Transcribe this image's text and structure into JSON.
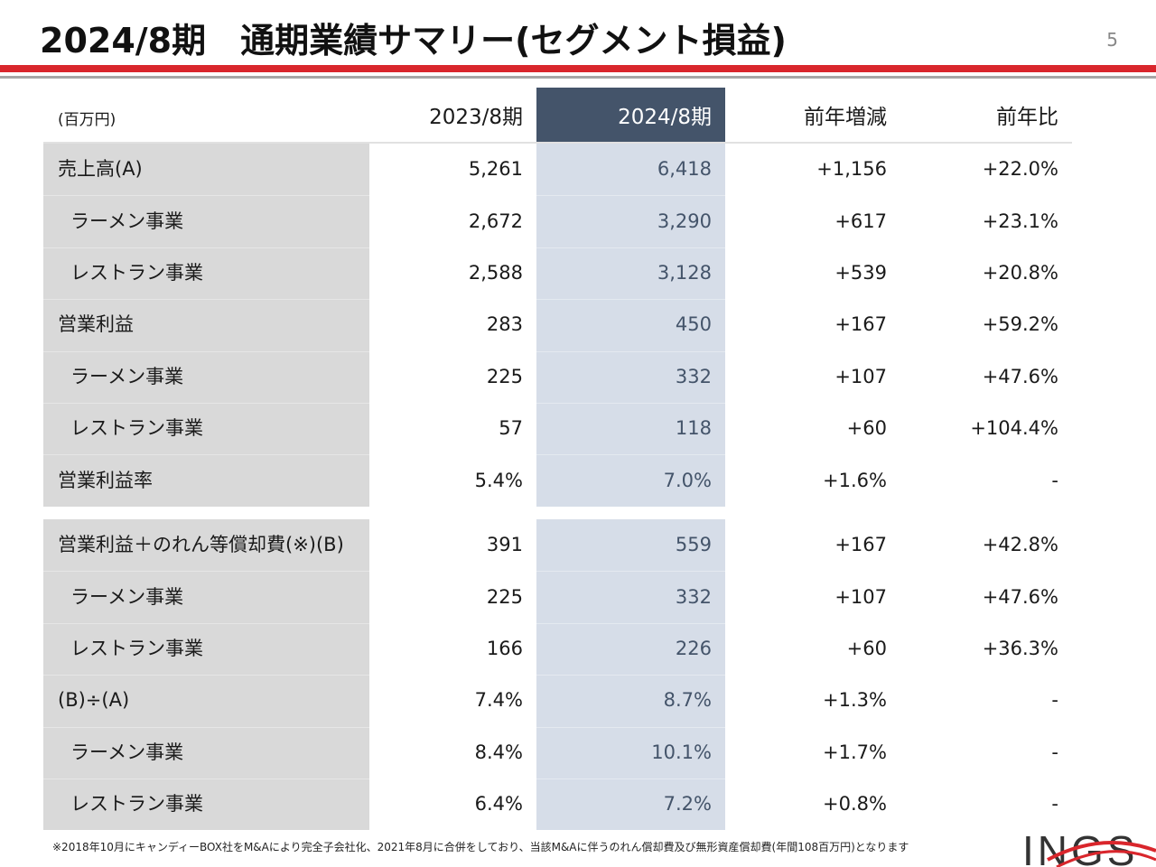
{
  "header": {
    "title": "2024/8期　通期業績サマリー(セグメント損益)",
    "page_number": "5"
  },
  "table": {
    "unit": "(百万円)",
    "columns": [
      "2023/8期",
      "2024/8期",
      "前年増減",
      "前年比"
    ],
    "group1": [
      {
        "label": "売上高(A)",
        "prev": "5,261",
        "cur": "6,418",
        "diff": "+1,156",
        "ratio": "+22.0%"
      },
      {
        "label": "ラーメン事業",
        "prev": "2,672",
        "cur": "3,290",
        "diff": "+617",
        "ratio": "+23.1%"
      },
      {
        "label": "レストラン事業",
        "prev": "2,588",
        "cur": "3,128",
        "diff": "+539",
        "ratio": "+20.8%"
      },
      {
        "label": "営業利益",
        "prev": "283",
        "cur": "450",
        "diff": "+167",
        "ratio": "+59.2%"
      },
      {
        "label": "ラーメン事業",
        "prev": "225",
        "cur": "332",
        "diff": "+107",
        "ratio": "+47.6%"
      },
      {
        "label": "レストラン事業",
        "prev": "57",
        "cur": "118",
        "diff": "+60",
        "ratio": "+104.4%"
      },
      {
        "label": "営業利益率",
        "prev": "5.4%",
        "cur": "7.0%",
        "diff": "+1.6%",
        "ratio": "-"
      }
    ],
    "group2": [
      {
        "label": "営業利益＋のれん等償却費(※)(B)",
        "prev": "391",
        "cur": "559",
        "diff": "+167",
        "ratio": "+42.8%"
      },
      {
        "label": "ラーメン事業",
        "prev": "225",
        "cur": "332",
        "diff": "+107",
        "ratio": "+47.6%"
      },
      {
        "label": "レストラン事業",
        "prev": "166",
        "cur": "226",
        "diff": "+60",
        "ratio": "+36.3%"
      },
      {
        "label": "(B)÷(A)",
        "prev": "7.4%",
        "cur": "8.7%",
        "diff": "+1.3%",
        "ratio": "-"
      },
      {
        "label": "ラーメン事業",
        "prev": "8.4%",
        "cur": "10.1%",
        "diff": "+1.7%",
        "ratio": "-"
      },
      {
        "label": "レストラン事業",
        "prev": "6.4%",
        "cur": "7.2%",
        "diff": "+0.8%",
        "ratio": "-"
      }
    ]
  },
  "footnote": "※2018年10月にキャンディーBOX社をM&Aにより完全子会社化、2021年8月に合併をしており、当該M&Aに伴うのれん償却費及び無形資産償却費(年間108百万円)となります",
  "logo": {
    "text": "INGS"
  },
  "colors": {
    "accent_red": "#d9262c",
    "header_navy": "#44546a",
    "current_col_bg": "#d6dde8",
    "label_col_bg": "#d9d9d9"
  }
}
